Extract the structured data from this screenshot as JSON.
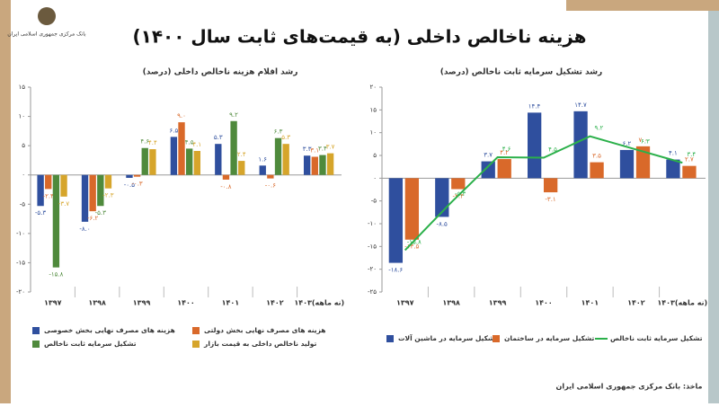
{
  "header": {
    "logo_text": "بانک مرکزی جمهوری اسلامی ایران",
    "title": "هزینه ناخالص داخلی (به قیمت‌های ثابت سال ۱۴۰۰)",
    "source": "ماخذ: بانک مرکزی جمهوری اسلامی ایران"
  },
  "chart_data": [
    {
      "type": "bar",
      "title": "رشد اقلام هزینه ناخالص داخلی (درصد)",
      "categories": [
        "۱۳۹۷",
        "۱۳۹۸",
        "۱۳۹۹",
        "۱۴۰۰",
        "۱۴۰۱",
        "۱۴۰۲",
        "۱۴۰۳(نه ماهه)"
      ],
      "series": [
        {
          "name": "هزینه های مصرف نهایی بخش خصوصی",
          "color": "#2f4f9e",
          "values": [
            -5.3,
            -8.0,
            -0.5,
            6.5,
            5.3,
            1.6,
            3.3
          ],
          "value_labels": [
            "-۵.۳",
            "-۸.۰",
            "-۰.۵",
            "۶.۵",
            "۵.۳",
            "۱.۶",
            "۳.۳"
          ]
        },
        {
          "name": "هزینه های مصرف نهایی بخش دولتی",
          "color": "#d9692a",
          "values": [
            -2.4,
            -6.2,
            -0.3,
            9.0,
            -0.8,
            -0.6,
            3.1
          ],
          "value_labels": [
            "-۲.۴",
            "-۶.۲",
            "-۰.۳",
            "۹.۰",
            "-۰.۸",
            "-۰.۶",
            "۳.۱"
          ]
        },
        {
          "name": "تشکیل سرمایه ثابت ناخالص",
          "color": "#4f8a3c",
          "values": [
            -15.8,
            -5.3,
            4.6,
            4.5,
            9.2,
            6.3,
            3.4
          ],
          "value_labels": [
            "-۱۵.۸",
            "-۵.۳",
            "۴.۶",
            "۴.۵",
            "۹.۲",
            "۶.۳",
            "۳.۴"
          ]
        },
        {
          "name": "تولید ناخالص داخلی به قیمت بازار",
          "color": "#d6a52b",
          "values": [
            -3.7,
            -2.3,
            4.4,
            4.1,
            2.4,
            5.3,
            3.7
          ],
          "value_labels": [
            "-۳.۷",
            "-۲.۳",
            "۴.۴",
            "۴.۱",
            "۲.۴",
            "۵.۳",
            "۳.۷"
          ]
        }
      ],
      "ylim": [
        -20,
        15
      ],
      "yticks": [
        {
          "value": -20,
          "label": "-۲۰"
        },
        {
          "value": -15,
          "label": "-۱۵"
        },
        {
          "value": -10,
          "label": "-۱۰"
        },
        {
          "value": -5,
          "label": "-۵"
        },
        {
          "value": 0,
          "label": "۰"
        },
        {
          "value": 5,
          "label": "۵"
        },
        {
          "value": 10,
          "label": "۱۰"
        },
        {
          "value": 15,
          "label": "۱۵"
        }
      ]
    },
    {
      "type": "combo",
      "title": "رشد تشکیل سرمایه ثابت ناخالص (درصد)",
      "categories": [
        "۱۳۹۷",
        "۱۳۹۸",
        "۱۳۹۹",
        "۱۴۰۰",
        "۱۴۰۱",
        "۱۴۰۲",
        "۱۴۰۳(نه ماهه)"
      ],
      "series": [
        {
          "name": "تشکیل سرمایه در ماشین آلات",
          "type": "bar",
          "color": "#2f4f9e",
          "values": [
            -18.6,
            -8.5,
            3.7,
            14.4,
            14.7,
            6.2,
            4.1
          ],
          "value_labels": [
            "-۱۸.۶",
            "-۸.۵",
            "۳.۷",
            "۱۴.۴",
            "۱۴.۷",
            "۶.۲",
            "۴.۱"
          ]
        },
        {
          "name": "تشکیل سرمایه در ساختمان",
          "type": "bar",
          "color": "#d9692a",
          "values": [
            -13.5,
            -2.4,
            4.2,
            -3.1,
            3.5,
            7.0,
            2.7
          ],
          "value_labels": [
            "-۱۳.۵",
            "-۲.۴",
            "۴.۲",
            "-۳.۱",
            "۳.۵",
            "۷.۰",
            "۲.۷"
          ]
        },
        {
          "name": "تشکیل سرمایه ثابت ناخالص",
          "type": "line",
          "color": "#2bb04a",
          "values": [
            -15.8,
            -5.3,
            4.6,
            4.5,
            9.2,
            6.3,
            3.4
          ],
          "value_labels": [
            "-۱۵.۸",
            "-۵.۳",
            "۴.۶",
            "۴.۵",
            "۹.۲",
            "۶.۳",
            "۳.۴"
          ]
        }
      ],
      "ylim": [
        -25,
        20
      ],
      "yticks": [
        {
          "value": -25,
          "label": "-۲۵"
        },
        {
          "value": -20,
          "label": "-۲۰"
        },
        {
          "value": -15,
          "label": "-۱۵"
        },
        {
          "value": -10,
          "label": "-۱۰"
        },
        {
          "value": -5,
          "label": "-۵"
        },
        {
          "value": 0,
          "label": "۰"
        },
        {
          "value": 5,
          "label": "۵"
        },
        {
          "value": 10,
          "label": "۱۰"
        },
        {
          "value": 15,
          "label": "۱۵"
        },
        {
          "value": 20,
          "label": "۲۰"
        }
      ]
    }
  ]
}
